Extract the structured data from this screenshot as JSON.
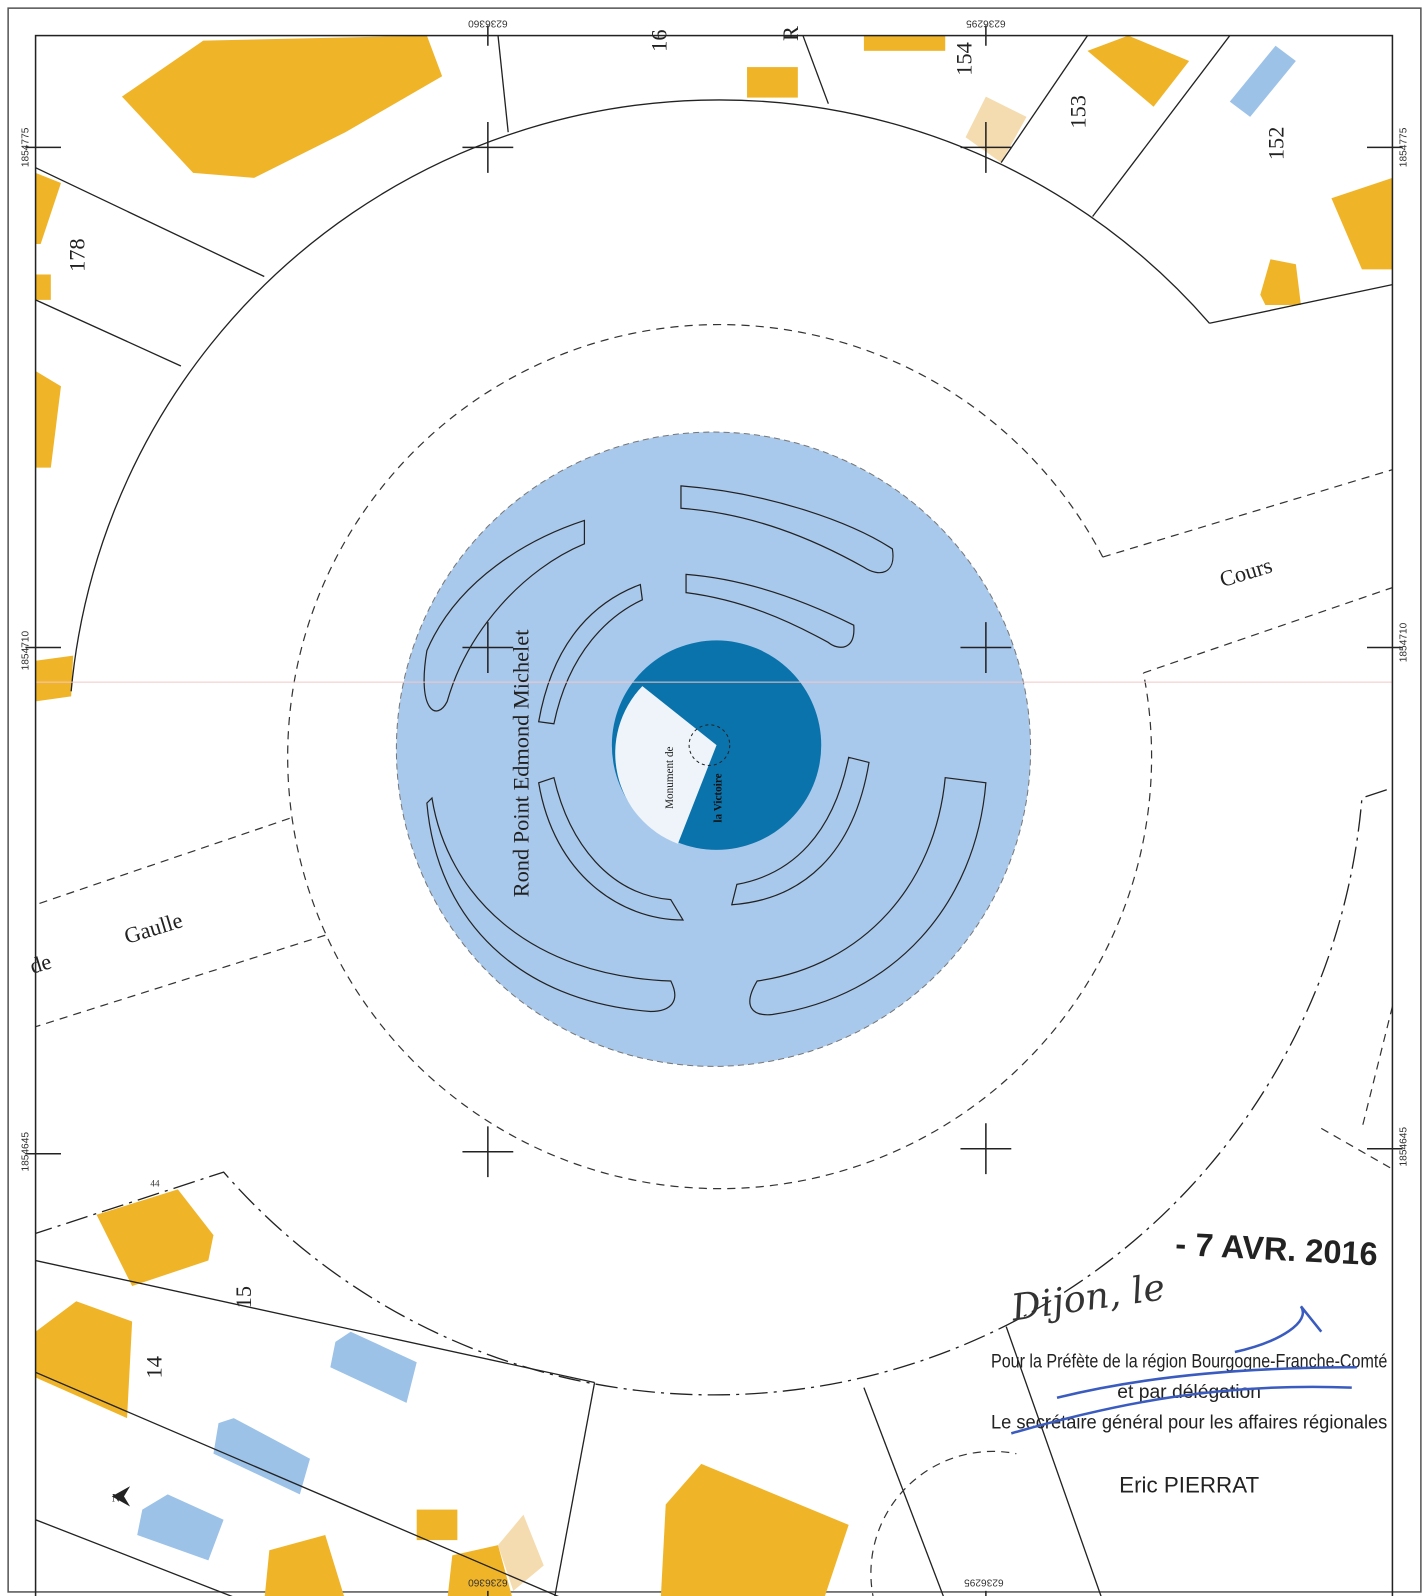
{
  "map": {
    "coordinates": {
      "top": [
        "6236360",
        "6236295"
      ],
      "bottom": [
        "6236360",
        "6236295"
      ],
      "left": [
        "1854775",
        "1854710",
        "1854645"
      ],
      "right": [
        "1854775",
        "1854710",
        "1854645"
      ]
    },
    "parcels": [
      "16",
      "R",
      "154",
      "153",
      "152",
      "178",
      "44",
      "15",
      "14"
    ],
    "streets": [
      "Cours",
      "Gaulle",
      "de",
      "Rond Point Edmond Michelet"
    ],
    "monument": [
      "Monument de",
      "la Victoire"
    ],
    "north": "N"
  },
  "stamp": {
    "place": "Dijon, le",
    "date": "- 7 AVR. 2016",
    "lines": [
      "Pour la Préfète de la région Bourgogne-Franche-Comté",
      "et par délégation",
      "Le secrétaire général pour les affaires régionales"
    ],
    "signatory": "Eric PIERRAT"
  }
}
